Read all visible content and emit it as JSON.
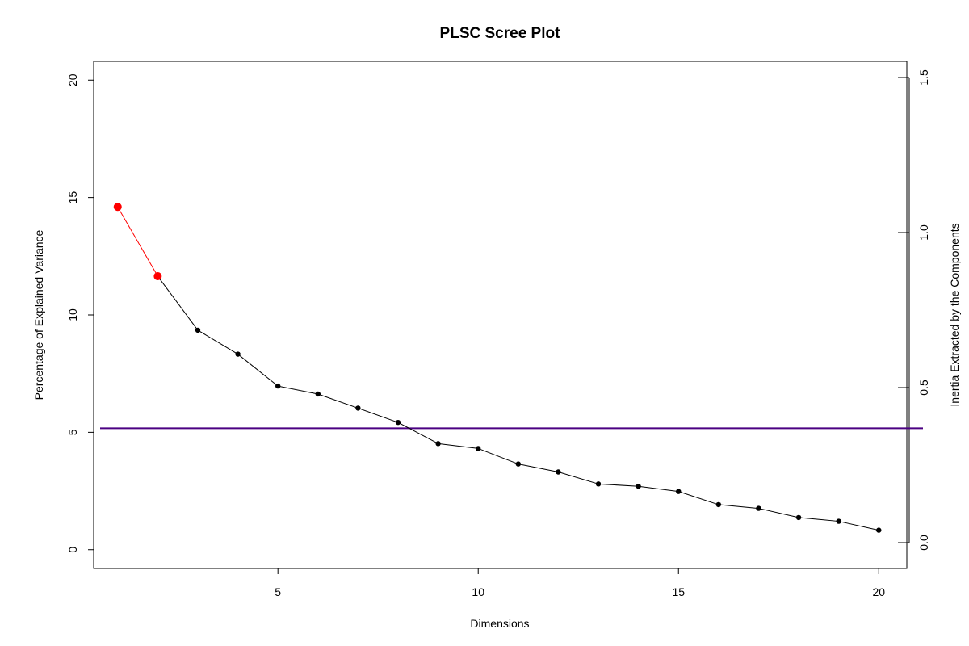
{
  "chart_data": {
    "type": "line",
    "title": "PLSC Scree Plot",
    "xlabel": "Dimensions",
    "ylabel": "Percentage of Explained Variance",
    "ylabel_right": "Inertia Extracted by the Components",
    "x": [
      1,
      2,
      3,
      4,
      5,
      6,
      7,
      8,
      9,
      10,
      11,
      12,
      13,
      14,
      15,
      16,
      17,
      18,
      19,
      20
    ],
    "values": [
      14.6,
      11.65,
      9.35,
      8.33,
      6.97,
      6.63,
      6.03,
      5.42,
      4.52,
      4.31,
      3.65,
      3.31,
      2.8,
      2.7,
      2.48,
      1.92,
      1.76,
      1.37,
      1.21,
      0.83
    ],
    "highlight_count": 2,
    "x_ticks": [
      "5",
      "10",
      "15",
      "20"
    ],
    "y_ticks": [
      "0",
      "5",
      "10",
      "15",
      "20"
    ],
    "y2_ticks": [
      "0.0",
      "0.5",
      "1.0",
      "1.5"
    ],
    "xlim": [
      0.4,
      20.7
    ],
    "ylim": [
      -0.8,
      20.8
    ],
    "y2lim": [
      0,
      1.5
    ],
    "reference_line": 5.17,
    "grid": false,
    "colors": {
      "line": "#000000",
      "highlight": "#ff0000",
      "reference": "#4b0082"
    }
  }
}
